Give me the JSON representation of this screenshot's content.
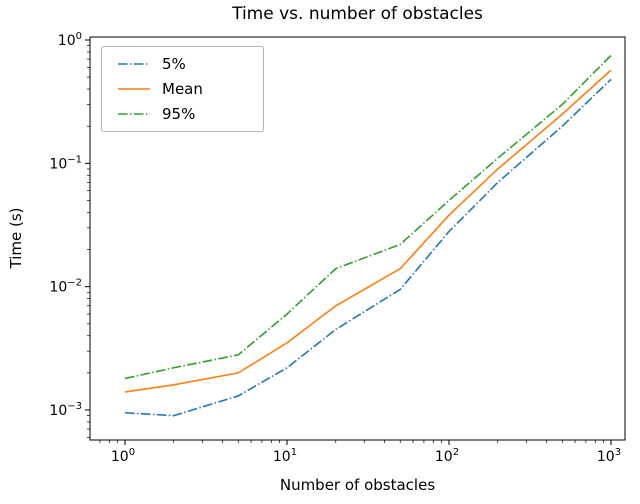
{
  "chart_data": {
    "type": "line",
    "title": "Time vs. number of obstacles",
    "xlabel": "Number of obstacles",
    "ylabel": "Time (s)",
    "xscale": "log",
    "yscale": "log",
    "xlim": [
      1,
      1000
    ],
    "ylim": [
      0.001,
      1
    ],
    "grid": false,
    "legend_position": "upper left",
    "x_tick_exponents": [
      0,
      1,
      2,
      3
    ],
    "y_tick_exponents": [
      -3,
      -2,
      -1,
      0
    ],
    "x": [
      1,
      2,
      5,
      10,
      20,
      50,
      100,
      200,
      500,
      1000
    ],
    "series": [
      {
        "name": "5%",
        "color": "#1f77b4",
        "linestyle": "dashdot",
        "dasharray": "9.6 2.4 1.5 2.4",
        "values": [
          0.00095,
          0.0009,
          0.0013,
          0.0022,
          0.0045,
          0.0095,
          0.028,
          0.07,
          0.2,
          0.48
        ]
      },
      {
        "name": "Mean",
        "color": "#ff7f0e",
        "linestyle": "solid",
        "dasharray": "none",
        "values": [
          0.0014,
          0.0016,
          0.002,
          0.0035,
          0.007,
          0.014,
          0.038,
          0.09,
          0.25,
          0.57
        ]
      },
      {
        "name": "95%",
        "color": "#2ca02c",
        "linestyle": "dashdot",
        "dasharray": "9.6 2.4 1.5 2.4",
        "values": [
          0.0018,
          0.0022,
          0.0028,
          0.006,
          0.014,
          0.022,
          0.05,
          0.11,
          0.3,
          0.75
        ]
      }
    ]
  }
}
